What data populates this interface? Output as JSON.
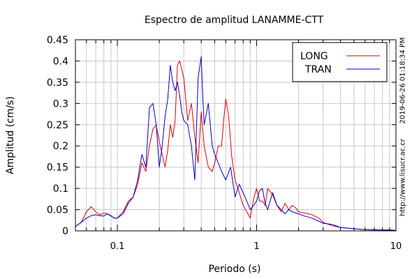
{
  "chart_data": {
    "type": "line",
    "title": "Espectro de amplitud LANAMME-CTT",
    "xlabel": "Periodo (s)",
    "ylabel": "Amplitud (cm/s)",
    "xscale": "log",
    "xlim": [
      0.05,
      10
    ],
    "ylim": [
      0,
      0.45
    ],
    "xticks": [
      {
        "value": 0.1,
        "label": "0.1"
      },
      {
        "value": 1,
        "label": "1"
      },
      {
        "value": 10,
        "label": "10"
      }
    ],
    "yticks": [
      {
        "value": 0,
        "label": "0"
      },
      {
        "value": 0.05,
        "label": "0.05"
      },
      {
        "value": 0.1,
        "label": "0.1"
      },
      {
        "value": 0.15,
        "label": "0.15"
      },
      {
        "value": 0.2,
        "label": "0.2"
      },
      {
        "value": 0.25,
        "label": "0.25"
      },
      {
        "value": 0.3,
        "label": "0.3"
      },
      {
        "value": 0.35,
        "label": "0.35"
      },
      {
        "value": 0.4,
        "label": "0.4"
      },
      {
        "value": 0.45,
        "label": "0.45"
      }
    ],
    "grid": true,
    "legend_position": "top-right",
    "series": [
      {
        "name": "LONG",
        "color": "#dd0000",
        "x": [
          0.05,
          0.055,
          0.06,
          0.065,
          0.07,
          0.075,
          0.08,
          0.085,
          0.09,
          0.095,
          0.1,
          0.11,
          0.12,
          0.13,
          0.14,
          0.15,
          0.16,
          0.17,
          0.18,
          0.19,
          0.2,
          0.21,
          0.22,
          0.23,
          0.24,
          0.25,
          0.26,
          0.27,
          0.28,
          0.29,
          0.3,
          0.32,
          0.34,
          0.36,
          0.38,
          0.4,
          0.42,
          0.45,
          0.48,
          0.5,
          0.53,
          0.56,
          0.58,
          0.6,
          0.63,
          0.66,
          0.7,
          0.75,
          0.8,
          0.85,
          0.9,
          0.95,
          1.0,
          1.05,
          1.1,
          1.15,
          1.2,
          1.3,
          1.4,
          1.5,
          1.6,
          1.7,
          1.8,
          1.9,
          2.0,
          2.2,
          2.5,
          2.8,
          3.0,
          3.5,
          4.0,
          5.0,
          6.0,
          7.0,
          8.0,
          9.0,
          10.0
        ],
        "values": [
          0.01,
          0.02,
          0.045,
          0.057,
          0.045,
          0.038,
          0.042,
          0.04,
          0.036,
          0.03,
          0.03,
          0.045,
          0.07,
          0.08,
          0.11,
          0.16,
          0.14,
          0.2,
          0.24,
          0.25,
          0.21,
          0.18,
          0.15,
          0.19,
          0.25,
          0.22,
          0.26,
          0.39,
          0.4,
          0.38,
          0.36,
          0.26,
          0.3,
          0.22,
          0.16,
          0.28,
          0.2,
          0.15,
          0.14,
          0.16,
          0.2,
          0.2,
          0.26,
          0.31,
          0.27,
          0.18,
          0.12,
          0.09,
          0.06,
          0.045,
          0.03,
          0.075,
          0.1,
          0.07,
          0.07,
          0.06,
          0.1,
          0.085,
          0.06,
          0.045,
          0.065,
          0.05,
          0.06,
          0.055,
          0.045,
          0.042,
          0.038,
          0.03,
          0.02,
          0.012,
          0.008,
          0.005,
          0.003,
          0.003,
          0.002,
          0.003,
          0.001
        ]
      },
      {
        "name": "TRAN",
        "color": "#0000cc",
        "x": [
          0.05,
          0.055,
          0.06,
          0.065,
          0.07,
          0.075,
          0.08,
          0.085,
          0.09,
          0.095,
          0.1,
          0.11,
          0.12,
          0.13,
          0.14,
          0.15,
          0.16,
          0.17,
          0.18,
          0.19,
          0.2,
          0.21,
          0.22,
          0.23,
          0.24,
          0.25,
          0.26,
          0.27,
          0.28,
          0.29,
          0.3,
          0.32,
          0.34,
          0.36,
          0.38,
          0.4,
          0.41,
          0.42,
          0.45,
          0.48,
          0.5,
          0.53,
          0.56,
          0.6,
          0.65,
          0.7,
          0.75,
          0.8,
          0.85,
          0.9,
          0.95,
          1.0,
          1.05,
          1.1,
          1.15,
          1.2,
          1.3,
          1.4,
          1.5,
          1.6,
          1.7,
          1.8,
          2.0,
          2.2,
          2.5,
          3.0,
          3.5,
          4.0,
          5.0,
          6.0,
          7.0,
          8.0,
          9.0,
          10.0
        ],
        "values": [
          0.01,
          0.02,
          0.03,
          0.036,
          0.038,
          0.036,
          0.035,
          0.04,
          0.035,
          0.03,
          0.03,
          0.04,
          0.065,
          0.08,
          0.12,
          0.18,
          0.15,
          0.29,
          0.3,
          0.25,
          0.15,
          0.2,
          0.27,
          0.31,
          0.39,
          0.35,
          0.33,
          0.35,
          0.32,
          0.28,
          0.26,
          0.25,
          0.2,
          0.12,
          0.36,
          0.41,
          0.32,
          0.25,
          0.3,
          0.2,
          0.18,
          0.16,
          0.14,
          0.12,
          0.15,
          0.08,
          0.11,
          0.09,
          0.07,
          0.05,
          0.06,
          0.07,
          0.095,
          0.1,
          0.065,
          0.05,
          0.09,
          0.06,
          0.05,
          0.04,
          0.05,
          0.045,
          0.04,
          0.035,
          0.03,
          0.018,
          0.015,
          0.008,
          0.005,
          0.003,
          0.002,
          0.002,
          0.001,
          0.001
        ]
      }
    ]
  },
  "side_text": {
    "timestamp": "2019-06-26 01:18:34 PM",
    "site": "http://www.lisucr.ac.cr"
  }
}
